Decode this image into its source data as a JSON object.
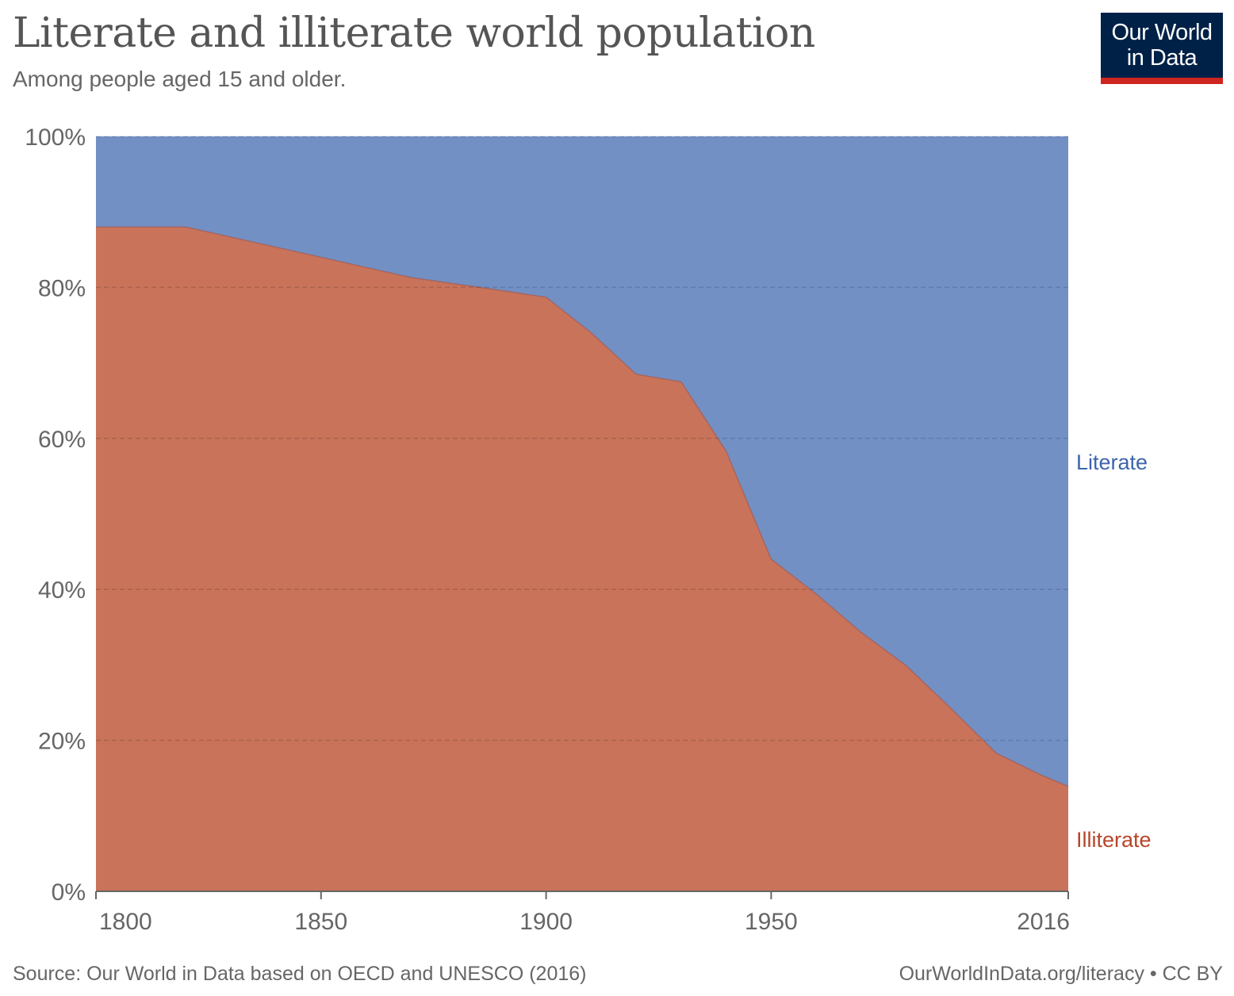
{
  "header": {
    "title": "Literate and illiterate world population",
    "subtitle": "Among people aged 15 and older."
  },
  "logo": {
    "line1": "Our World",
    "line2": "in Data"
  },
  "footer": {
    "source": "Source: Our World in Data based on OECD and UNESCO (2016)",
    "link": "OurWorldInData.org/literacy • CC BY"
  },
  "colors": {
    "literate": "#7390c5",
    "illiterate": "#c9735a",
    "literate_label": "#3d64ad",
    "illiterate_label": "#b8452a",
    "grid": "#c8c8c8",
    "axis_text": "#666666"
  },
  "chart_data": {
    "type": "area",
    "stacked": true,
    "normalized": true,
    "x": [
      1800,
      1820,
      1850,
      1870,
      1890,
      1900,
      1910,
      1920,
      1930,
      1940,
      1950,
      1960,
      1970,
      1980,
      1990,
      2000,
      2010,
      2016
    ],
    "series": [
      {
        "name": "Illiterate",
        "values": [
          88,
          88,
          84,
          81.3,
          79.6,
          78.7,
          74,
          68.5,
          67.5,
          58.3,
          44,
          39.4,
          34.3,
          29.9,
          24.2,
          18.3,
          15.4,
          13.9
        ]
      },
      {
        "name": "Literate",
        "values": [
          12,
          12,
          16,
          18.7,
          20.4,
          21.3,
          26,
          31.5,
          32.5,
          41.7,
          56,
          60.6,
          65.7,
          70.1,
          75.8,
          81.7,
          84.6,
          86.1
        ]
      }
    ],
    "xlim": [
      1800,
      2016
    ],
    "ylim": [
      0,
      100
    ],
    "y_ticks": [
      "0%",
      "20%",
      "40%",
      "60%",
      "80%",
      "100%"
    ],
    "y_tick_values": [
      0,
      20,
      40,
      60,
      80,
      100
    ],
    "x_ticks": [
      "1800",
      "1850",
      "1900",
      "1950",
      "2016"
    ],
    "x_tick_values": [
      1800,
      1850,
      1900,
      1950,
      2016
    ],
    "grid": true,
    "legend": "inline-right"
  }
}
